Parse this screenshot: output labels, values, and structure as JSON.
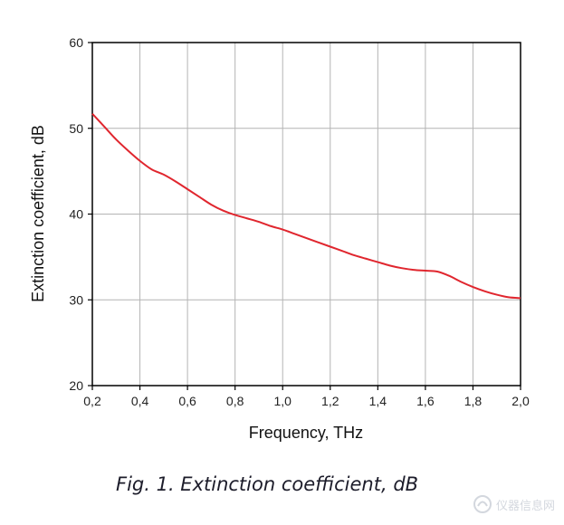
{
  "chart_data": {
    "type": "line",
    "title": "",
    "xlabel": "Frequency, THz",
    "ylabel": "Extinction coefficient, dB",
    "xlim": [
      0.2,
      2.0
    ],
    "ylim": [
      20,
      60
    ],
    "grid": true,
    "x_ticks": [
      "0,2",
      "0,4",
      "0,6",
      "0,8",
      "1,0",
      "1,2",
      "1,4",
      "1,6",
      "1,8",
      "2,0"
    ],
    "y_ticks": [
      "20",
      "30",
      "40",
      "50",
      "60"
    ],
    "series": [
      {
        "name": "Extinction coefficient",
        "color": "#e0262e",
        "x": [
          0.2,
          0.25,
          0.3,
          0.35,
          0.4,
          0.45,
          0.5,
          0.55,
          0.6,
          0.65,
          0.7,
          0.75,
          0.8,
          0.85,
          0.9,
          0.95,
          1.0,
          1.05,
          1.1,
          1.15,
          1.2,
          1.25,
          1.3,
          1.35,
          1.4,
          1.45,
          1.5,
          1.55,
          1.6,
          1.65,
          1.7,
          1.75,
          1.8,
          1.85,
          1.9,
          1.95,
          2.0
        ],
        "values": [
          51.7,
          50.2,
          48.7,
          47.4,
          46.2,
          45.2,
          44.6,
          43.8,
          42.9,
          42.0,
          41.1,
          40.4,
          39.9,
          39.5,
          39.1,
          38.6,
          38.2,
          37.7,
          37.2,
          36.7,
          36.2,
          35.7,
          35.2,
          34.8,
          34.4,
          34.0,
          33.7,
          33.5,
          33.4,
          33.3,
          32.8,
          32.1,
          31.5,
          31.0,
          30.6,
          30.3,
          30.2
        ]
      }
    ]
  },
  "caption": "Fig. 1. Extinction coefficient, dB",
  "watermark": "仪器信息网"
}
